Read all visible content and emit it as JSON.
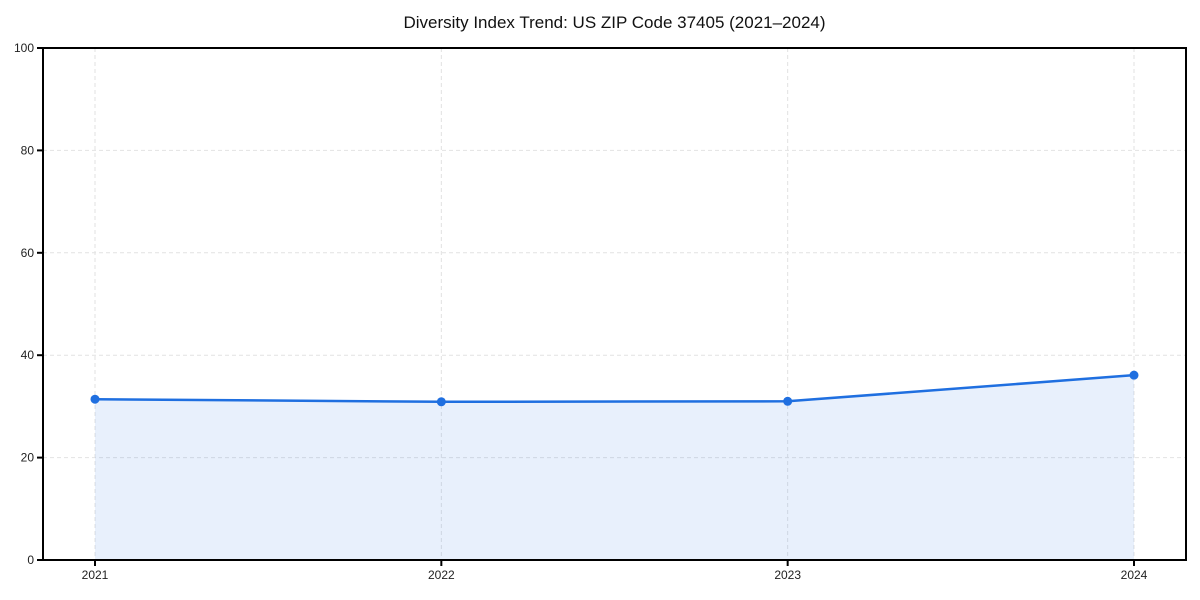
{
  "chart_data": {
    "type": "area",
    "title": "Diversity Index Trend: US ZIP Code 37405 (2021–2024)",
    "x": [
      2021,
      2022,
      2023,
      2024
    ],
    "x_tick_labels": [
      "2021",
      "2022",
      "2023",
      "2024"
    ],
    "values": [
      31.4,
      30.9,
      31.0,
      36.1
    ],
    "xlabel": "",
    "ylabel": "",
    "ylim": [
      0,
      100
    ],
    "yticks": [
      0,
      20,
      40,
      60,
      80,
      100
    ],
    "grid": true,
    "grid_style": "dashed",
    "legend": "none",
    "colors": {
      "line": "#1f6fe0",
      "marker": "#1f6fe0",
      "fill": "#e8effc",
      "grid": "#e2e2e2",
      "frame": "#000000",
      "text": "#111111",
      "background": "#ffffff"
    }
  }
}
